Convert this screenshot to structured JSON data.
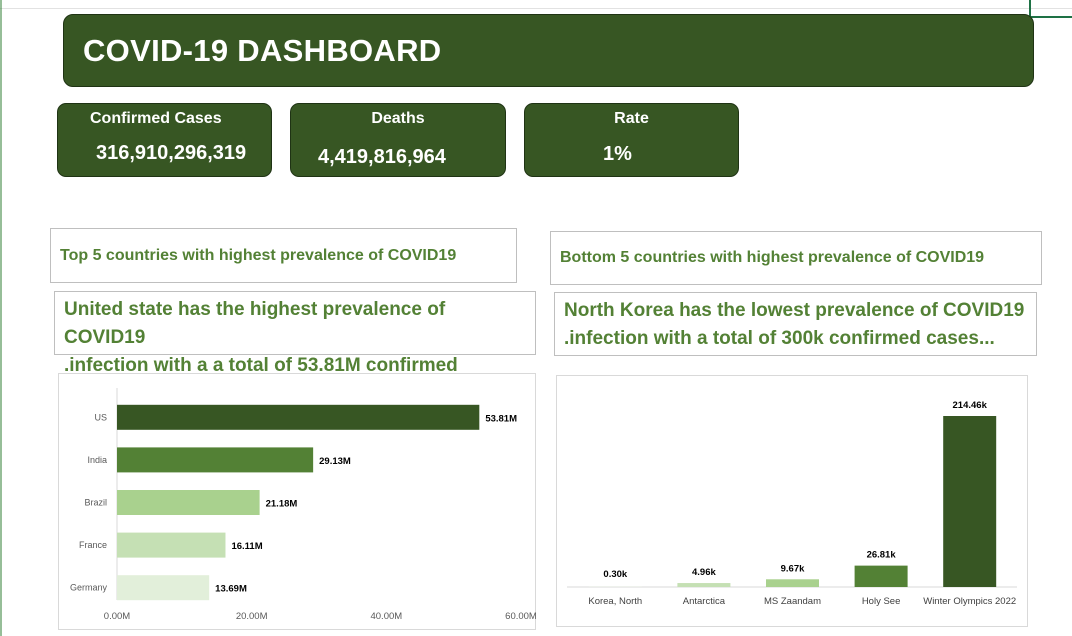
{
  "dashboard": {
    "title": "COVID-19 DASHBOARD"
  },
  "kpis": [
    {
      "label": "Confirmed Cases",
      "value": "316,910,296,319"
    },
    {
      "label": "Deaths",
      "value": "4,419,816,964"
    },
    {
      "label": "Rate",
      "value": "1%"
    }
  ],
  "top_section": {
    "heading": "Top 5 countries with highest prevalence of COVID19",
    "summary_line1": "United state has the highest prevalence of COVID19",
    "summary_line2": ".infection with a a total of 53.81M confirmed"
  },
  "bottom_section": {
    "heading": "Bottom 5 countries with highest prevalence of COVID19",
    "summary_line1": "North Korea has the lowest prevalence of COVID19",
    "summary_line2": ".infection with a total of 300k confirmed cases..."
  },
  "colors": {
    "banner": "#375623",
    "accent_text": "#538135"
  },
  "chart_data": [
    {
      "type": "bar",
      "orientation": "horizontal",
      "categories": [
        "US",
        "India",
        "Brazil",
        "France",
        "Germany"
      ],
      "values": [
        53.81,
        29.13,
        21.18,
        16.11,
        13.69
      ],
      "value_labels": [
        "53.81M",
        "29.13M",
        "21.18M",
        "16.11M",
        "13.69M"
      ],
      "colors": [
        "#375623",
        "#538135",
        "#a9d18e",
        "#c5e0b4",
        "#e2efda"
      ],
      "xlim": [
        0,
        60
      ],
      "x_ticks": [
        0,
        20,
        40,
        60
      ],
      "x_tick_labels": [
        "0.00M",
        "20.00M",
        "40.00M",
        "60.00M"
      ],
      "grid": false,
      "legend": "none"
    },
    {
      "type": "bar",
      "orientation": "vertical",
      "categories": [
        "Korea, North",
        "Antarctica",
        "MS Zaandam",
        "Holy See",
        "Winter Olympics 2022"
      ],
      "values": [
        0.3,
        4.96,
        9.67,
        26.81,
        214.46
      ],
      "value_labels": [
        "0.30k",
        "4.96k",
        "9.67k",
        "26.81k",
        "214.46k"
      ],
      "colors": [
        "#e2efda",
        "#c5e0b4",
        "#a9d18e",
        "#538135",
        "#375623"
      ],
      "ylim": [
        0,
        214.46
      ],
      "grid": false,
      "legend": "none"
    }
  ]
}
